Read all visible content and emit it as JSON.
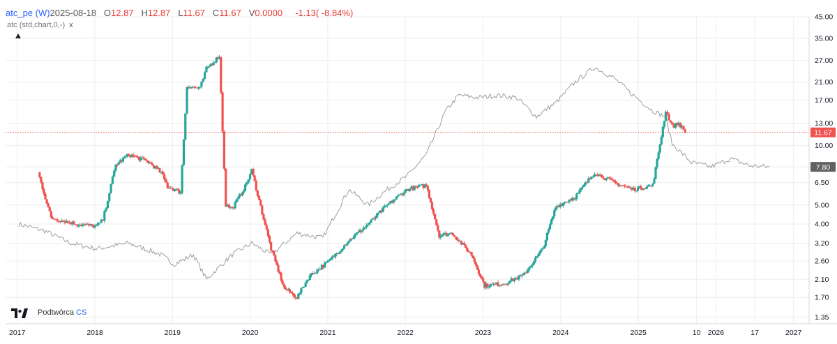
{
  "legend": {
    "symbol": "atc_pe (W)",
    "date": "2025-08-18",
    "open_label": "O",
    "open": "12.87",
    "high_label": "H",
    "high": "12.87",
    "low_label": "L",
    "low": "11.67",
    "close_label": "C",
    "close": "11.67",
    "volume_label": "V",
    "volume": "0.0000",
    "change": "-1.13",
    "change_pct": "(   -8.84%)",
    "indicator": "atc (std,chart,0,-)",
    "indicator_close": "x"
  },
  "brand": {
    "name": "Podtwórca",
    "suffix": "CS"
  },
  "colors": {
    "up": "#26a69a",
    "down": "#ef5350",
    "line": "#9e9e9e",
    "grid": "#eeeeee",
    "price_tag": "#ef5350",
    "line_tag": "#616161"
  },
  "chart_data": {
    "type": "candlestick",
    "y_scale": "log",
    "ylim": [
      1.25,
      45
    ],
    "y_ticks": [
      "45.00",
      "35.00",
      "27.00",
      "21.00",
      "17.00",
      "13.00",
      "10.00",
      "7.80",
      "6.50",
      "5.00",
      "4.00",
      "3.20",
      "2.60",
      "2.10",
      "1.70",
      "1.35"
    ],
    "x_ticks": [
      "2017",
      "2018",
      "2019",
      "2020",
      "2021",
      "2022",
      "2023",
      "2024",
      "2025",
      "10",
      "2026",
      "17",
      "2027"
    ],
    "last_price_tag": "11.67",
    "line_last_tag": "7.80",
    "pe_series": [
      [
        "2017-04",
        7.3
      ],
      [
        "2017-06",
        4.3
      ],
      [
        "2017-10",
        4.0
      ],
      [
        "2018-01",
        3.9
      ],
      [
        "2018-02",
        4.2
      ],
      [
        "2018-03",
        5.8
      ],
      [
        "2018-04",
        8.0
      ],
      [
        "2018-06",
        9.0
      ],
      [
        "2018-09",
        8.3
      ],
      [
        "2018-11",
        7.3
      ],
      [
        "2018-12",
        6.2
      ],
      [
        "2019-02",
        5.8
      ],
      [
        "2019-03",
        20.0
      ],
      [
        "2019-05",
        19.5
      ],
      [
        "2019-06",
        24.5
      ],
      [
        "2019-08",
        28.5
      ],
      [
        "2019-09",
        5.0
      ],
      [
        "2019-10",
        4.8
      ],
      [
        "2019-12",
        6.2
      ],
      [
        "2020-01",
        7.5
      ],
      [
        "2020-04",
        3.0
      ],
      [
        "2020-06",
        1.9
      ],
      [
        "2020-08",
        1.7
      ],
      [
        "2020-10",
        2.2
      ],
      [
        "2021-01",
        2.6
      ],
      [
        "2021-04",
        3.3
      ],
      [
        "2021-07",
        4.0
      ],
      [
        "2021-10",
        5.0
      ],
      [
        "2022-01",
        6.0
      ],
      [
        "2022-04",
        6.3
      ],
      [
        "2022-06",
        3.5
      ],
      [
        "2022-08",
        3.6
      ],
      [
        "2022-11",
        2.8
      ],
      [
        "2023-01",
        1.95
      ],
      [
        "2023-04",
        2.0
      ],
      [
        "2023-07",
        2.2
      ],
      [
        "2023-10",
        3.0
      ],
      [
        "2023-12",
        4.9
      ],
      [
        "2024-03",
        5.5
      ],
      [
        "2024-06",
        7.3
      ],
      [
        "2024-09",
        6.5
      ],
      [
        "2024-12",
        6.0
      ],
      [
        "2025-03",
        6.3
      ],
      [
        "2025-05",
        15.0
      ],
      [
        "2025-06",
        12.5
      ],
      [
        "2025-07",
        13.0
      ],
      [
        "2025-08",
        11.67
      ]
    ],
    "atc_series": [
      [
        "2017-01",
        4.0
      ],
      [
        "2017-05",
        3.7
      ],
      [
        "2017-09",
        3.2
      ],
      [
        "2018-01",
        3.0
      ],
      [
        "2018-06",
        3.2
      ],
      [
        "2018-11",
        2.8
      ],
      [
        "2019-01",
        2.5
      ],
      [
        "2019-04",
        2.8
      ],
      [
        "2019-06",
        2.1
      ],
      [
        "2019-10",
        2.8
      ],
      [
        "2020-01",
        3.2
      ],
      [
        "2020-04",
        2.8
      ],
      [
        "2020-08",
        3.6
      ],
      [
        "2020-12",
        3.4
      ],
      [
        "2021-04",
        6.0
      ],
      [
        "2021-07",
        5.0
      ],
      [
        "2021-10",
        6.0
      ],
      [
        "2022-01",
        7.0
      ],
      [
        "2022-04",
        9.0
      ],
      [
        "2022-07",
        15.0
      ],
      [
        "2022-09",
        18.0
      ],
      [
        "2022-12",
        17.5
      ],
      [
        "2023-03",
        18.0
      ],
      [
        "2023-06",
        17.5
      ],
      [
        "2023-09",
        14.0
      ],
      [
        "2023-12",
        16.5
      ],
      [
        "2024-03",
        21.0
      ],
      [
        "2024-06",
        25.0
      ],
      [
        "2024-09",
        22.0
      ],
      [
        "2024-12",
        18.0
      ],
      [
        "2025-03",
        15.0
      ],
      [
        "2025-05",
        14.0
      ],
      [
        "2025-06",
        10.2
      ],
      [
        "2025-09",
        8.2
      ],
      [
        "2025-12",
        7.8
      ],
      [
        "2026-03",
        8.6
      ],
      [
        "2026-06",
        7.9
      ],
      [
        "2026-09",
        7.8
      ]
    ]
  }
}
